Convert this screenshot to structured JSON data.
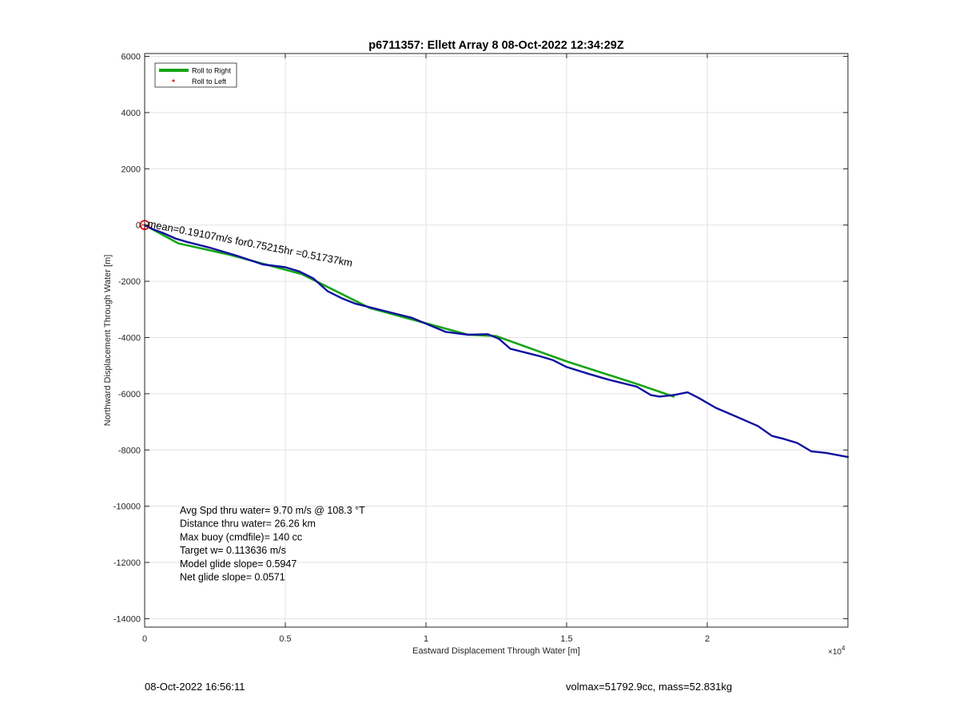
{
  "chart_data": {
    "type": "line",
    "title": "p6711357: Ellett Array 8 08-Oct-2022 12:34:29Z",
    "xlabel": "Eastward Displacement Through Water [m]",
    "ylabel": "Northward Displacement Through Water [m]",
    "x_exponent_label": "×10",
    "x_exponent_power": "4",
    "xlim": [
      0,
      25000
    ],
    "ylim": [
      -14300,
      6100
    ],
    "x_ticks": [
      0,
      5000,
      10000,
      15000,
      20000
    ],
    "x_tick_labels": [
      "0",
      "0.5",
      "1",
      "1.5",
      "2"
    ],
    "y_ticks": [
      6000,
      4000,
      2000,
      0,
      -2000,
      -4000,
      -6000,
      -8000,
      -10000,
      -12000,
      -14000
    ],
    "y_tick_labels": [
      "6000",
      "4000",
      "2000",
      "0",
      "-2000",
      "-4000",
      "-6000",
      "-8000",
      "-10000",
      "-12000",
      "-14000"
    ],
    "grid": true,
    "legend_position": "top-left",
    "legend": [
      {
        "label": "Roll to Right",
        "color": "#16a516",
        "marker": "line"
      },
      {
        "label": "Roll to Left",
        "color": "#e00000",
        "marker": "dot"
      }
    ],
    "series": [
      {
        "name": "Roll to Right",
        "color": "#16a516",
        "x": [
          0,
          1200,
          3000,
          5600,
          8000,
          11500,
          12500,
          15000,
          17500,
          18800
        ],
        "y": [
          0,
          -650,
          -1050,
          -1750,
          -2950,
          -3900,
          -3950,
          -4850,
          -5650,
          -6100
        ]
      },
      {
        "name": "",
        "color": "#1010a0",
        "x": [
          0,
          300,
          700,
          1100,
          1500,
          2300,
          3300,
          4200,
          5000,
          5500,
          6000,
          6500,
          7000,
          7500,
          8500,
          9500,
          10100,
          10700,
          11500,
          12200,
          12600,
          13000,
          14000,
          14500,
          15000,
          15800,
          16500,
          17500,
          18000,
          18300,
          18800,
          19300,
          19700,
          20300,
          21000,
          21800,
          22300,
          22700,
          23200,
          23700,
          24200,
          25000
        ],
        "y": [
          0,
          -150,
          -300,
          -480,
          -600,
          -800,
          -1100,
          -1400,
          -1500,
          -1650,
          -1900,
          -2350,
          -2600,
          -2800,
          -3050,
          -3300,
          -3550,
          -3800,
          -3900,
          -3880,
          -4050,
          -4400,
          -4650,
          -4800,
          -5050,
          -5300,
          -5500,
          -5750,
          -6050,
          -6100,
          -6050,
          -5950,
          -6150,
          -6500,
          -6800,
          -7150,
          -7500,
          -7600,
          -7750,
          -8050,
          -8100,
          -8250
        ]
      }
    ],
    "annotation": "mean=0.19107m/s for0.75215hr =0.51737km",
    "stats_lines": [
      "Avg Spd thru water=  9.70 m/s @ 108.3 °T",
      "Distance thru water= 26.26 km",
      "Max buoy (cmdfile)= 140 cc",
      "Target w= 0.113636 m/s",
      "Model glide slope= 0.5947",
      "Net glide slope= 0.0571"
    ]
  },
  "footer": {
    "left": "08-Oct-2022 16:56:11",
    "right": "volmax=51792.9cc, mass=52.831kg"
  }
}
